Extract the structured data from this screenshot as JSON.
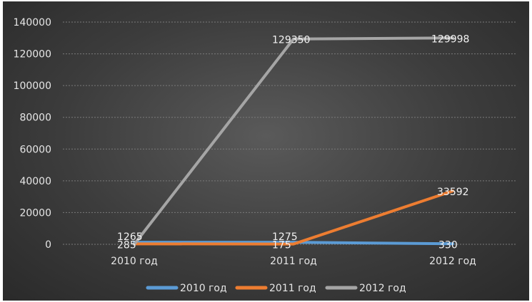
{
  "chart_data": {
    "type": "line",
    "categories": [
      "2010 год",
      "2011 год",
      "2012 год"
    ],
    "series": [
      {
        "name": "2010 год",
        "values": [
          1265,
          1275,
          330
        ],
        "color": "#5b9bd5"
      },
      {
        "name": "2011 год",
        "values": [
          285,
          175,
          33592
        ],
        "color": "#ed7d31"
      },
      {
        "name": "2012 год",
        "values": [
          0,
          129350,
          129998
        ],
        "color": "#a5a5a5"
      }
    ],
    "data_labels": [
      [
        "1265",
        "1275",
        "330"
      ],
      [
        "285",
        "175",
        "33592"
      ],
      [
        "",
        "129350",
        "129998"
      ]
    ],
    "yticks": [
      "0",
      "20000",
      "40000",
      "60000",
      "80000",
      "100000",
      "120000",
      "140000"
    ],
    "ylim": [
      0,
      140000
    ],
    "grid": true,
    "legend_position": "bottom",
    "title": "",
    "xlabel": "",
    "ylabel": ""
  }
}
